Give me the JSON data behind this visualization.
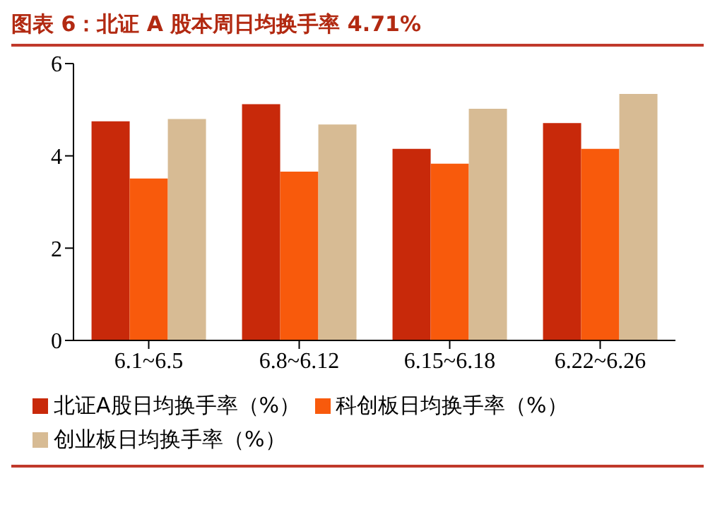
{
  "chart_data": {
    "type": "bar",
    "title": "图表 6：北证 A 股本周日均换手率 4.71%",
    "categories": [
      "6.1~6.5",
      "6.8~6.12",
      "6.15~6.18",
      "6.22~6.26"
    ],
    "series": [
      {
        "name": "北证A股日均换手率（%）",
        "color": "#c8290a",
        "values": [
          4.75,
          5.12,
          4.15,
          4.71
        ]
      },
      {
        "name": "科创板日均换手率（%）",
        "color": "#f85a0c",
        "values": [
          3.51,
          3.66,
          3.83,
          4.15
        ]
      },
      {
        "name": "创业板日均换手率（%）",
        "color": "#d7bb94",
        "values": [
          4.8,
          4.68,
          5.02,
          5.34
        ]
      }
    ],
    "ylim": [
      0,
      6
    ],
    "yticks": [
      0,
      2,
      4,
      6
    ],
    "legend": "bottom"
  }
}
